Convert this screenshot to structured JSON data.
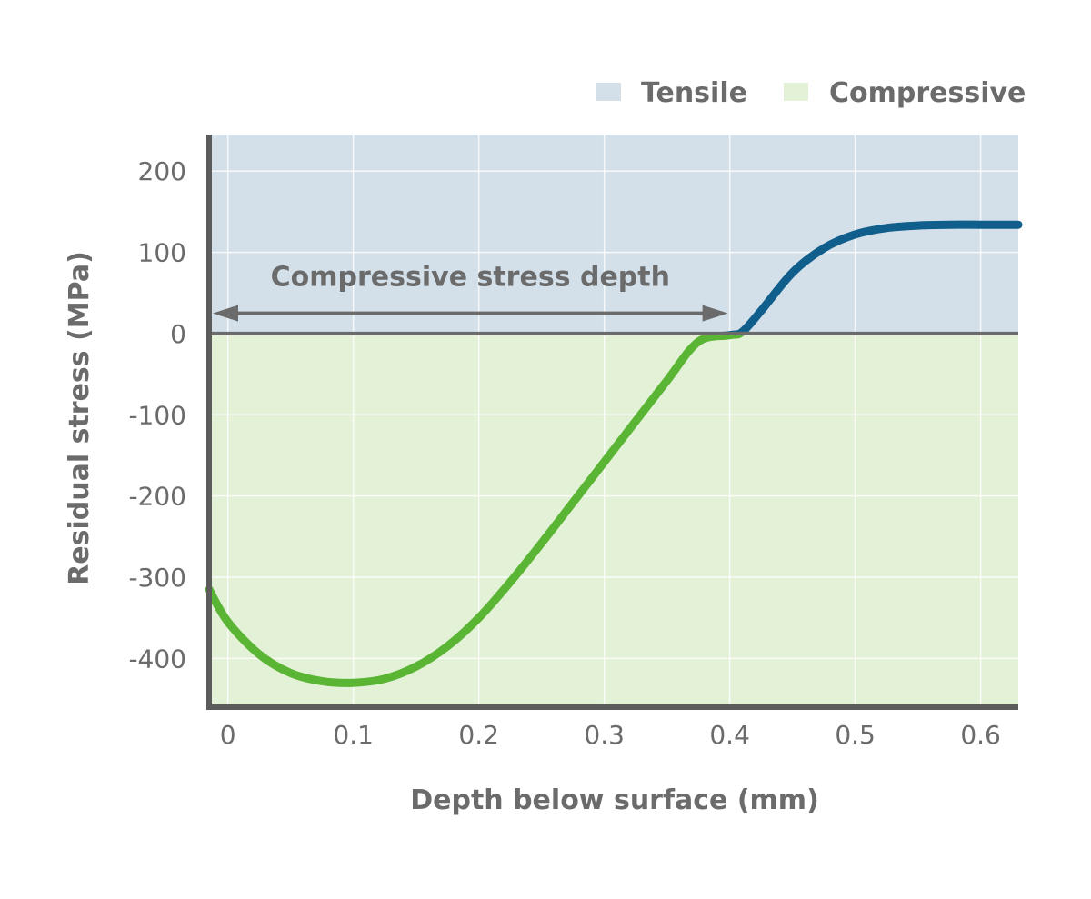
{
  "chart_data": {
    "type": "line",
    "title": "",
    "xlabel": "Depth below surface (mm)",
    "ylabel": "Residual stress (MPa)",
    "xlim": [
      -0.015,
      0.63
    ],
    "ylim": [
      -460,
      245
    ],
    "x_ticks": [
      0,
      0.1,
      0.2,
      0.3,
      0.4,
      0.5,
      0.6
    ],
    "x_tick_labels": [
      "0",
      "0.1",
      "0.2",
      "0.3",
      "0.4",
      "0.5",
      "0.6"
    ],
    "y_ticks": [
      200,
      100,
      0,
      -100,
      -200,
      -300,
      -400
    ],
    "y_tick_labels": [
      "200",
      "100",
      "0",
      "-100",
      "-200",
      "-300",
      "-400"
    ],
    "grid": true,
    "legend": [
      {
        "label": "Tensile",
        "color": "#d3e0e9"
      },
      {
        "label": "Compressive",
        "color": "#e3f1d7"
      }
    ],
    "regions": {
      "tensile_color": "#d3e0e9",
      "compressive_color": "#e3f1d7"
    },
    "series": [
      {
        "name": "Residual stress",
        "color_compressive": "#5ab534",
        "color_tensile": "#0f5e8c",
        "x": [
          -0.015,
          0.0,
          0.025,
          0.05,
          0.075,
          0.1,
          0.125,
          0.15,
          0.175,
          0.2,
          0.225,
          0.25,
          0.275,
          0.3,
          0.325,
          0.35,
          0.375,
          0.4,
          0.41,
          0.425,
          0.45,
          0.475,
          0.5,
          0.525,
          0.55,
          0.575,
          0.6,
          0.63
        ],
        "y": [
          -315,
          -355,
          -395,
          -418,
          -428,
          -430,
          -425,
          -410,
          -385,
          -350,
          -306,
          -258,
          -208,
          -158,
          -108,
          -58,
          -10,
          -2,
          2,
          28,
          75,
          105,
          122,
          130,
          133,
          134,
          134,
          134
        ]
      }
    ],
    "annotations": [
      {
        "text": "Compressive stress depth",
        "type": "double-arrow",
        "x_start": -0.015,
        "x_end": 0.4,
        "y": 25
      }
    ]
  }
}
